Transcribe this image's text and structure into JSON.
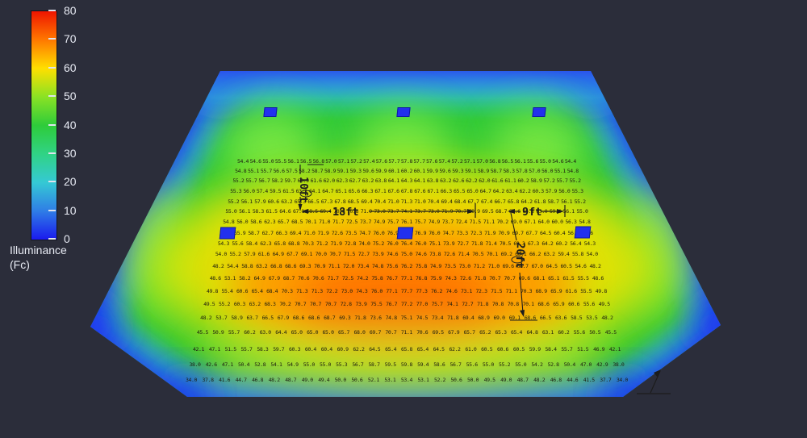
{
  "legend": {
    "title_line1": "Illuminance",
    "title_line2": "(Fc)",
    "ticks": [
      "80",
      "70",
      "60",
      "50",
      "40",
      "30",
      "20",
      "10",
      "0"
    ]
  },
  "dimensions": {
    "inner_width": "18ft",
    "outer_width": "9ft",
    "upper_height": "10ft",
    "lower_height": "20ft"
  },
  "colors": {
    "background": "#2b2d3a",
    "luminaire": "#2230ee",
    "scale_low_blue": "#1a1aee",
    "scale_high_red": "#ee1500"
  },
  "chart_data": {
    "type": "heatmap",
    "title": "Illuminance (Fc)",
    "unit": "Fc",
    "colormap": "jet (blue 0 to red 80)",
    "scale_min": 0,
    "scale_max": 80,
    "scale_ticks": [
      80,
      70,
      60,
      50,
      40,
      30,
      20,
      10,
      0
    ],
    "legend_position": "top-left",
    "annotations": [
      "18ft",
      "9ft",
      "10ft",
      "20ft"
    ],
    "luminaire_count": 6,
    "rows": 19,
    "cols": 27,
    "grid_values": [
      [
        "54.4",
        "54.6",
        "55.0",
        "55.5",
        "56.1",
        "56.5",
        "56.8",
        "57.0",
        "57.1",
        "57.2",
        "57.4",
        "57.6",
        "57.7",
        "57.8",
        "57.7",
        "57.6",
        "57.4",
        "57.2",
        "57.1",
        "57.0",
        "56.8",
        "56.5",
        "56.1",
        "55.6",
        "55.0",
        "54.6",
        "54.4"
      ],
      [
        "54.8",
        "55.1",
        "55.7",
        "56.6",
        "57.5",
        "58.2",
        "58.7",
        "58.9",
        "59.1",
        "59.3",
        "59.6",
        "59.9",
        "60.1",
        "60.2",
        "60.1",
        "59.9",
        "59.6",
        "59.3",
        "59.1",
        "58.9",
        "58.7",
        "58.3",
        "57.8",
        "57.0",
        "56.0",
        "55.1",
        "54.8"
      ],
      [
        "55.2",
        "55.7",
        "56.7",
        "58.2",
        "59.7",
        "60.9",
        "61.6",
        "62.0",
        "62.3",
        "62.7",
        "63.2",
        "63.8",
        "64.1",
        "64.3",
        "64.1",
        "63.8",
        "63.2",
        "62.6",
        "62.2",
        "62.0",
        "61.6",
        "61.1",
        "60.2",
        "58.9",
        "57.2",
        "55.7",
        "55.2"
      ],
      [
        "55.3",
        "56.0",
        "57.4",
        "59.5",
        "61.5",
        "63.1",
        "64.1",
        "64.7",
        "65.1",
        "65.6",
        "66.3",
        "67.1",
        "67.6",
        "67.8",
        "67.6",
        "67.1",
        "66.3",
        "65.5",
        "65.0",
        "64.7",
        "64.2",
        "63.4",
        "62.2",
        "60.3",
        "57.9",
        "56.0",
        "55.3"
      ],
      [
        "55.2",
        "56.1",
        "57.9",
        "60.6",
        "63.2",
        "65.3",
        "66.5",
        "67.3",
        "67.8",
        "68.5",
        "69.4",
        "70.4",
        "71.0",
        "71.3",
        "71.0",
        "70.4",
        "69.4",
        "68.4",
        "67.7",
        "67.4",
        "66.7",
        "65.8",
        "64.2",
        "61.8",
        "58.7",
        "56.1",
        "55.2"
      ],
      [
        "55.0",
        "56.1",
        "58.3",
        "61.5",
        "64.6",
        "67.1",
        "68.5",
        "69.4",
        "70.0",
        "70.8",
        "71.9",
        "73.0",
        "73.7",
        "74.1",
        "73.7",
        "73.0",
        "71.9",
        "70.7",
        "69.9",
        "69.5",
        "68.7",
        "67.6",
        "65.8",
        "63.0",
        "59.4",
        "56.1",
        "55.0"
      ],
      [
        "54.8",
        "56.0",
        "58.6",
        "62.3",
        "65.7",
        "68.5",
        "70.1",
        "71.0",
        "71.7",
        "72.5",
        "73.7",
        "74.9",
        "75.7",
        "76.1",
        "75.7",
        "74.9",
        "73.7",
        "72.4",
        "71.5",
        "71.1",
        "70.2",
        "69.0",
        "67.1",
        "64.0",
        "60.0",
        "56.3",
        "54.8"
      ],
      [
        "54.6",
        "55.9",
        "58.7",
        "62.7",
        "66.3",
        "69.4",
        "71.0",
        "71.9",
        "72.6",
        "73.5",
        "74.7",
        "76.0",
        "76.9",
        "77.3",
        "76.9",
        "76.0",
        "74.7",
        "73.3",
        "72.3",
        "71.9",
        "70.9",
        "69.7",
        "67.7",
        "64.5",
        "60.4",
        "56.6",
        "54.6"
      ],
      [
        "54.3",
        "55.6",
        "58.4",
        "62.3",
        "65.8",
        "68.8",
        "70.3",
        "71.2",
        "71.9",
        "72.8",
        "74.0",
        "75.2",
        "76.0",
        "76.4",
        "76.0",
        "75.1",
        "73.9",
        "72.7",
        "71.8",
        "71.4",
        "70.5",
        "69.3",
        "67.3",
        "64.2",
        "60.2",
        "56.4",
        "54.3"
      ],
      [
        "54.0",
        "55.2",
        "57.9",
        "61.6",
        "64.9",
        "67.7",
        "69.1",
        "70.0",
        "70.7",
        "71.5",
        "72.7",
        "73.9",
        "74.6",
        "75.0",
        "74.6",
        "73.8",
        "72.6",
        "71.4",
        "70.5",
        "70.1",
        "69.2",
        "68.1",
        "66.2",
        "63.2",
        "59.4",
        "55.8",
        "54.0"
      ],
      [
        "48.2",
        "54.4",
        "58.8",
        "63.2",
        "66.8",
        "68.6",
        "69.3",
        "70.9",
        "71.1",
        "72.0",
        "73.4",
        "74.8",
        "75.6",
        "76.2",
        "75.8",
        "74.9",
        "73.5",
        "73.0",
        "71.2",
        "71.0",
        "69.6",
        "68.7",
        "67.0",
        "64.5",
        "60.5",
        "54.6",
        "48.2"
      ],
      [
        "48.6",
        "53.1",
        "58.2",
        "64.9",
        "67.9",
        "68.7",
        "70.6",
        "70.6",
        "71.7",
        "72.5",
        "74.2",
        "75.8",
        "76.7",
        "77.1",
        "76.8",
        "75.9",
        "74.3",
        "72.6",
        "71.8",
        "70.7",
        "70.7",
        "69.6",
        "68.1",
        "65.1",
        "61.5",
        "55.5",
        "48.6"
      ],
      [
        "49.8",
        "55.4",
        "60.6",
        "65.4",
        "68.4",
        "70.3",
        "71.3",
        "71.3",
        "72.2",
        "73.0",
        "74.3",
        "76.0",
        "77.1",
        "77.7",
        "77.3",
        "76.2",
        "74.6",
        "73.1",
        "72.3",
        "71.5",
        "71.1",
        "70.3",
        "68.9",
        "65.9",
        "61.6",
        "55.5",
        "49.8"
      ],
      [
        "49.5",
        "55.2",
        "60.3",
        "63.2",
        "68.3",
        "70.2",
        "70.7",
        "70.7",
        "70.7",
        "72.8",
        "73.9",
        "75.5",
        "76.7",
        "77.2",
        "77.0",
        "75.7",
        "74.1",
        "72.7",
        "71.8",
        "70.8",
        "70.8",
        "70.1",
        "68.6",
        "65.9",
        "60.6",
        "55.6",
        "49.5"
      ],
      [
        "48.2",
        "53.7",
        "58.9",
        "63.7",
        "66.5",
        "67.9",
        "68.6",
        "68.6",
        "68.7",
        "69.3",
        "71.8",
        "73.6",
        "74.8",
        "75.1",
        "74.5",
        "73.4",
        "71.8",
        "69.4",
        "68.9",
        "69.0",
        "69.1",
        "68.6",
        "66.5",
        "63.6",
        "58.5",
        "53.5",
        "48.2"
      ],
      [
        "45.5",
        "50.9",
        "55.7",
        "60.2",
        "63.0",
        "64.4",
        "65.0",
        "65.0",
        "65.0",
        "65.7",
        "68.0",
        "69.7",
        "70.7",
        "71.1",
        "70.6",
        "69.5",
        "67.9",
        "65.7",
        "65.2",
        "65.3",
        "65.4",
        "64.8",
        "63.1",
        "60.2",
        "55.6",
        "50.5",
        "45.5"
      ],
      [
        "42.1",
        "47.1",
        "51.5",
        "55.7",
        "58.3",
        "59.7",
        "60.3",
        "60.4",
        "60.4",
        "60.9",
        "62.2",
        "64.5",
        "65.4",
        "65.8",
        "65.4",
        "64.5",
        "62.2",
        "61.0",
        "60.5",
        "60.6",
        "60.5",
        "59.9",
        "58.4",
        "55.7",
        "51.5",
        "46.9",
        "42.1"
      ],
      [
        "38.0",
        "42.6",
        "47.1",
        "50.4",
        "52.8",
        "54.1",
        "54.9",
        "55.0",
        "55.0",
        "55.3",
        "56.7",
        "58.7",
        "59.5",
        "59.8",
        "59.4",
        "58.6",
        "56.7",
        "55.6",
        "55.0",
        "55.2",
        "55.0",
        "54.2",
        "52.8",
        "50.4",
        "47.0",
        "42.9",
        "38.0"
      ],
      [
        "34.0",
        "37.8",
        "41.6",
        "44.7",
        "46.8",
        "48.2",
        "48.7",
        "49.0",
        "49.4",
        "50.0",
        "50.6",
        "52.1",
        "53.1",
        "53.4",
        "53.1",
        "52.2",
        "50.6",
        "50.0",
        "49.5",
        "49.0",
        "48.7",
        "48.2",
        "46.8",
        "44.6",
        "41.5",
        "37.7",
        "34.0"
      ]
    ]
  }
}
